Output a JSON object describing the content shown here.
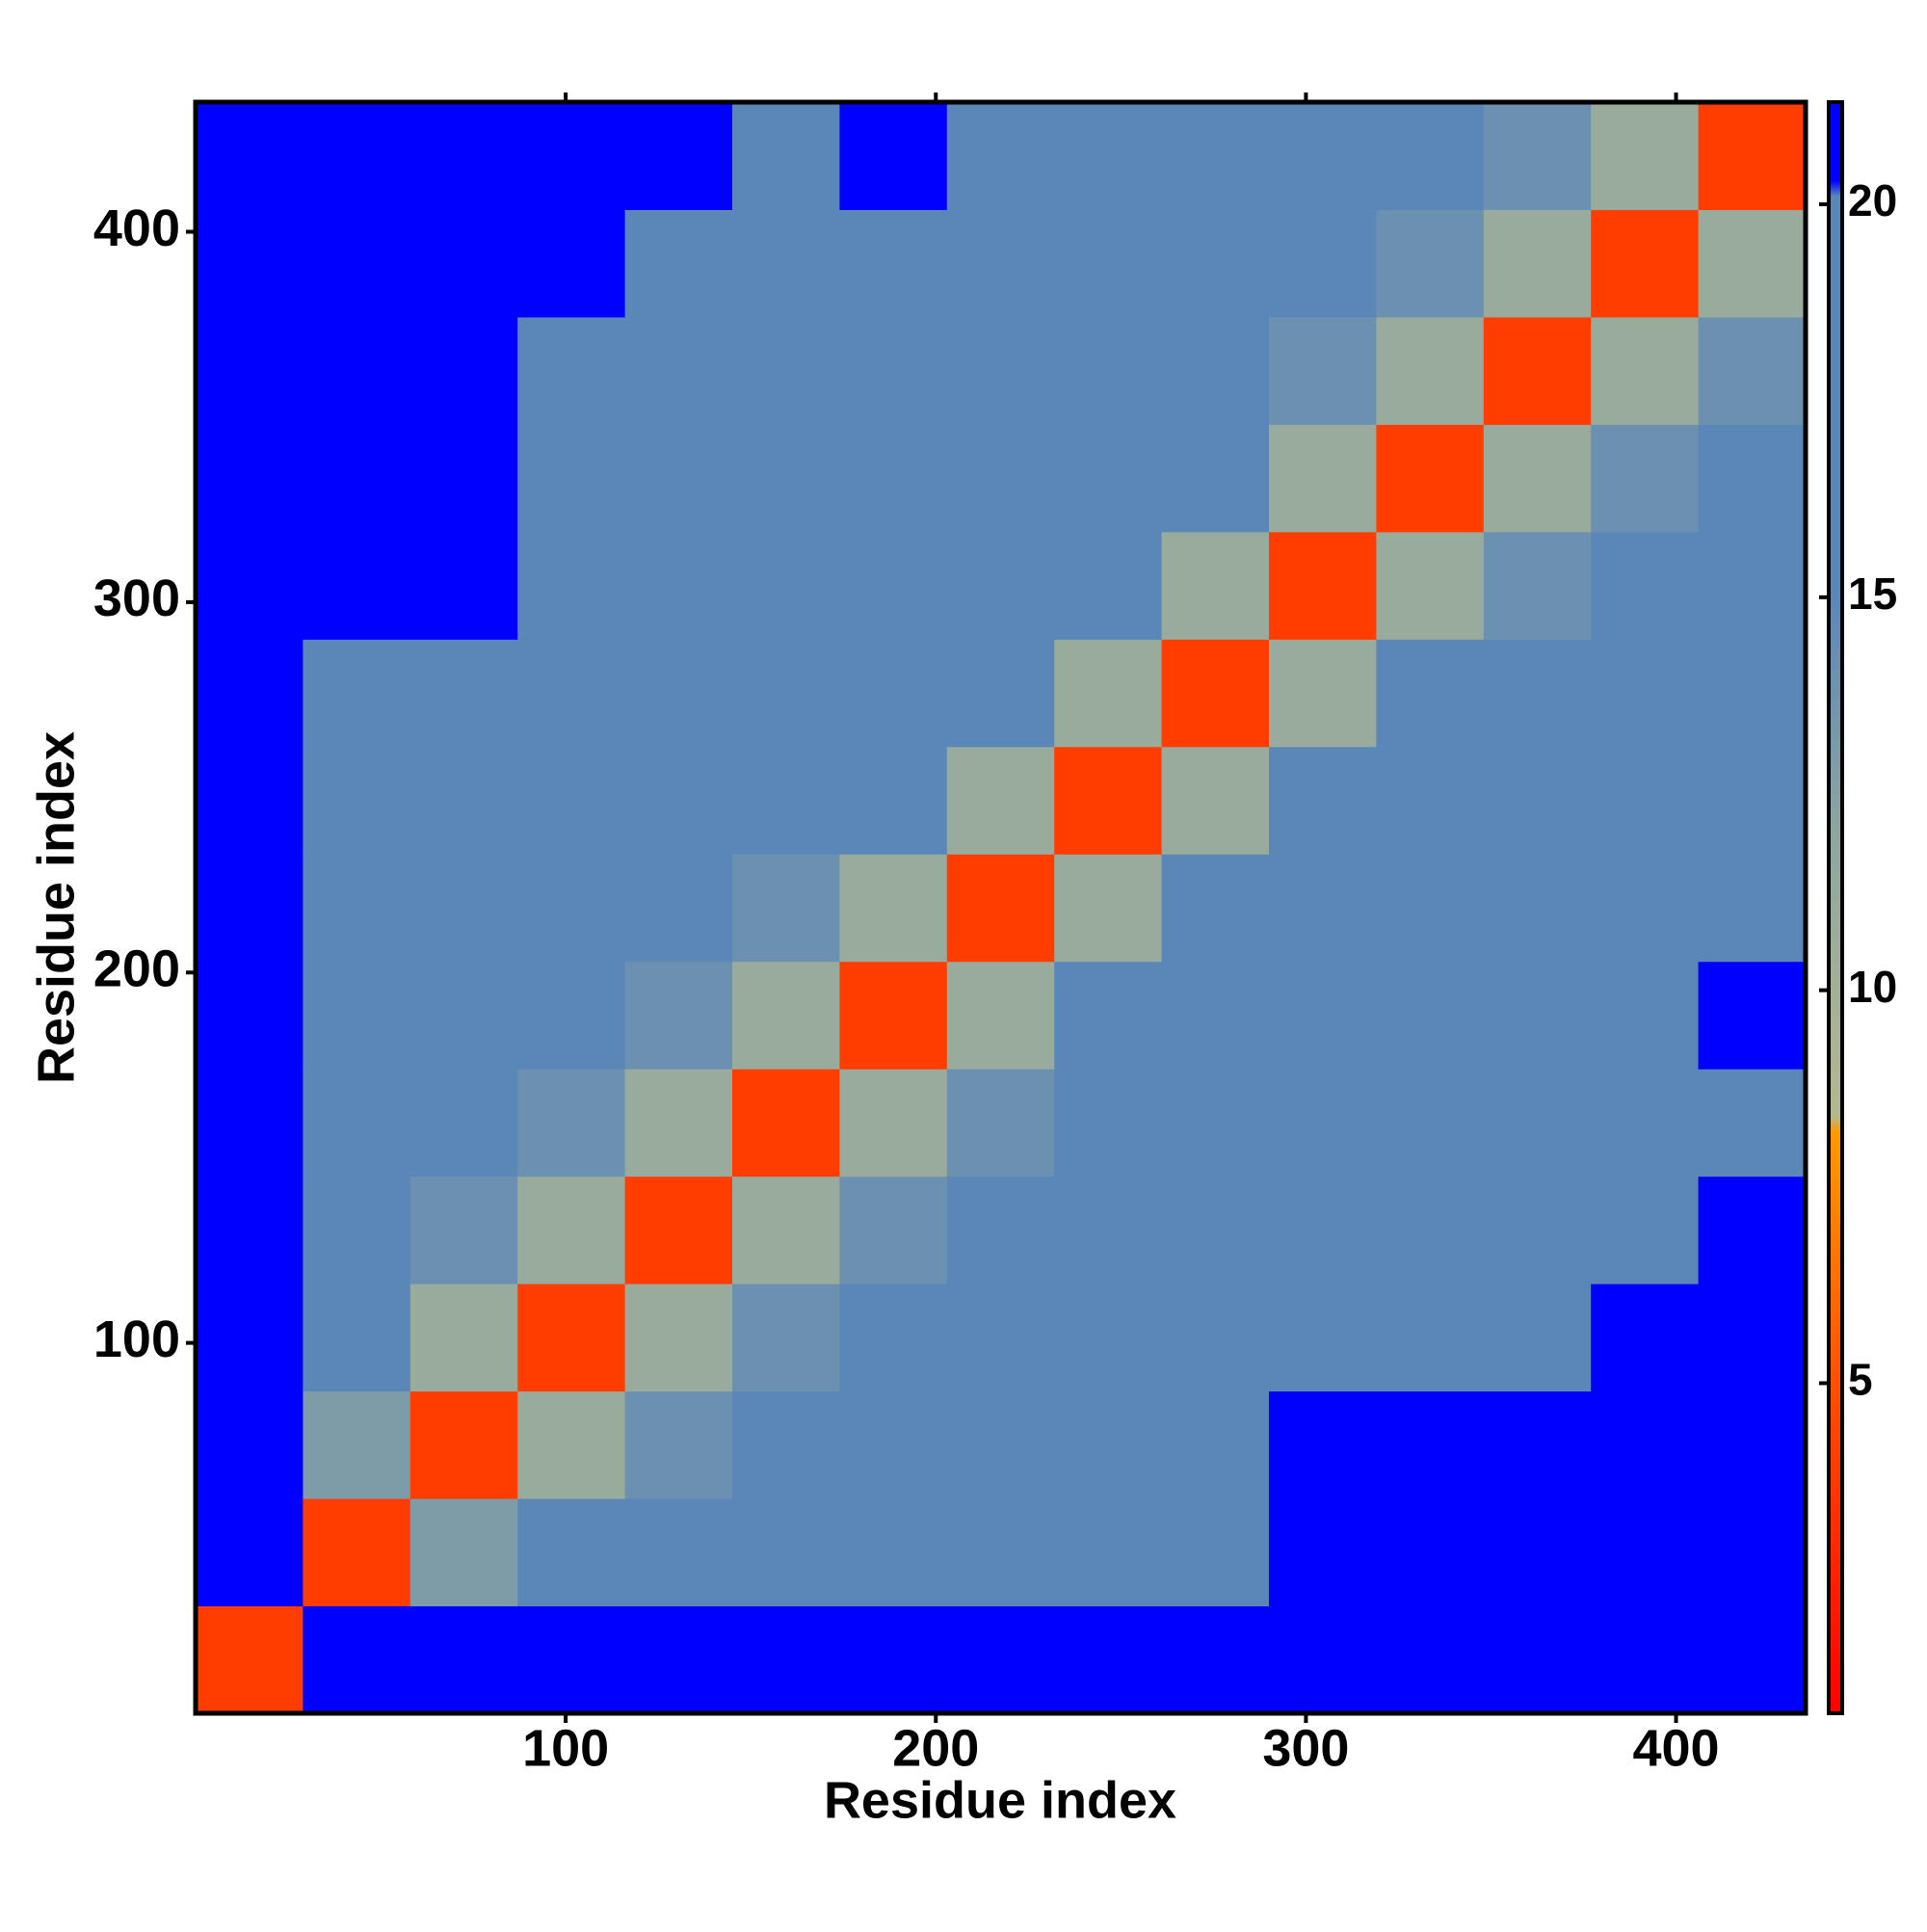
{
  "chart_data": {
    "type": "heatmap",
    "xlabel": "Residue index",
    "ylabel": "Residue index",
    "xbins": [
      0,
      29,
      58,
      87,
      116,
      145,
      174,
      203,
      232,
      261,
      290,
      319,
      348,
      377,
      406,
      435
    ],
    "ybins": [
      0,
      29,
      58,
      87,
      116,
      145,
      174,
      203,
      232,
      261,
      290,
      319,
      348,
      377,
      406,
      435
    ],
    "xlim": [
      0,
      435
    ],
    "ylim": [
      0,
      435
    ],
    "xticks": [
      100,
      200,
      300,
      400
    ],
    "yticks": [
      100,
      200,
      300,
      400
    ],
    "z": [
      [
        4,
        21,
        21,
        21,
        21,
        21,
        21,
        21,
        21,
        21,
        21,
        21,
        21,
        21,
        21
      ],
      [
        21,
        4,
        13,
        17,
        17,
        17,
        17,
        17,
        17,
        19,
        21,
        21,
        21,
        21,
        21
      ],
      [
        21,
        13,
        4,
        11,
        14,
        16,
        17,
        17,
        17,
        18,
        21,
        21,
        21,
        21,
        21
      ],
      [
        21,
        17,
        11,
        4,
        11,
        14,
        16,
        17,
        17,
        18,
        20,
        20,
        20,
        21,
        21
      ],
      [
        21,
        17,
        14,
        11,
        4,
        11,
        14,
        16,
        17,
        18,
        19,
        20,
        20,
        20,
        21
      ],
      [
        21,
        17,
        16,
        14,
        11,
        4,
        11,
        14,
        16,
        17,
        19,
        20,
        20,
        20,
        20
      ],
      [
        21,
        17,
        17,
        16,
        14,
        11,
        4,
        11,
        15,
        17,
        20,
        20,
        20,
        20,
        21
      ],
      [
        21,
        17,
        17,
        17,
        16,
        14,
        11,
        4,
        11,
        15,
        19,
        19,
        20,
        20,
        20
      ],
      [
        21,
        17,
        17,
        17,
        17,
        16,
        15,
        11,
        4,
        11,
        17,
        18,
        19,
        20,
        20
      ],
      [
        21,
        19,
        18,
        18,
        18,
        17,
        17,
        15,
        11,
        4,
        11,
        15,
        16,
        17,
        17
      ],
      [
        21,
        21,
        21,
        20,
        19,
        19,
        20,
        19,
        17,
        11,
        4,
        11,
        14,
        16,
        16
      ],
      [
        21,
        21,
        21,
        20,
        20,
        20,
        20,
        19,
        18,
        15,
        11,
        4,
        11,
        14,
        16
      ],
      [
        21,
        21,
        21,
        20,
        20,
        20,
        20,
        20,
        19,
        16,
        14,
        11,
        4,
        11,
        14
      ],
      [
        21,
        21,
        21,
        21,
        20,
        20,
        20,
        20,
        20,
        17,
        16,
        14,
        11,
        4,
        11
      ],
      [
        21,
        21,
        21,
        21,
        21,
        20,
        21,
        20,
        20,
        17,
        16,
        16,
        14,
        11,
        4
      ]
    ],
    "colorscale": [
      [
        0.8,
        "#ff0000"
      ],
      [
        5,
        "#ff5000"
      ],
      [
        8.2,
        "#ff9a00"
      ],
      [
        8.4,
        "#b4b890"
      ],
      [
        12,
        "#8ea6a0"
      ],
      [
        15,
        "#5b87b8"
      ],
      [
        20.1,
        "#5b87b8"
      ],
      [
        20.3,
        "#0000ff"
      ],
      [
        21.3,
        "#0000ff"
      ]
    ],
    "clim": [
      0.8,
      21.3
    ],
    "cticks": [
      5,
      10,
      15,
      20
    ]
  }
}
